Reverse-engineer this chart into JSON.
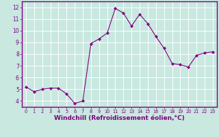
{
  "x": [
    0,
    1,
    2,
    3,
    4,
    5,
    6,
    7,
    8,
    9,
    10,
    11,
    12,
    13,
    14,
    15,
    16,
    17,
    18,
    19,
    20,
    21,
    22,
    23
  ],
  "y": [
    5.2,
    4.8,
    5.0,
    5.1,
    5.1,
    4.6,
    3.8,
    4.0,
    8.9,
    9.3,
    9.8,
    11.9,
    11.5,
    10.4,
    11.4,
    10.6,
    9.5,
    8.5,
    7.2,
    7.1,
    6.9,
    7.9,
    8.1,
    8.2
  ],
  "line_color": "#800080",
  "marker": "D",
  "marker_size": 2.0,
  "xlabel": "Windchill (Refroidissement éolien,°C)",
  "xlabel_fontsize": 6.5,
  "xlim": [
    -0.5,
    23.5
  ],
  "ylim": [
    3.5,
    12.5
  ],
  "yticks": [
    4,
    5,
    6,
    7,
    8,
    9,
    10,
    11,
    12
  ],
  "xticks": [
    0,
    1,
    2,
    3,
    4,
    5,
    6,
    7,
    8,
    9,
    10,
    11,
    12,
    13,
    14,
    15,
    16,
    17,
    18,
    19,
    20,
    21,
    22,
    23
  ],
  "bg_color": "#c8e8e0",
  "grid_color": "#ffffff",
  "tick_color": "#800080",
  "spine_color": "#800080",
  "label_fontsize": 5.5,
  "xtick_fontsize": 4.8
}
